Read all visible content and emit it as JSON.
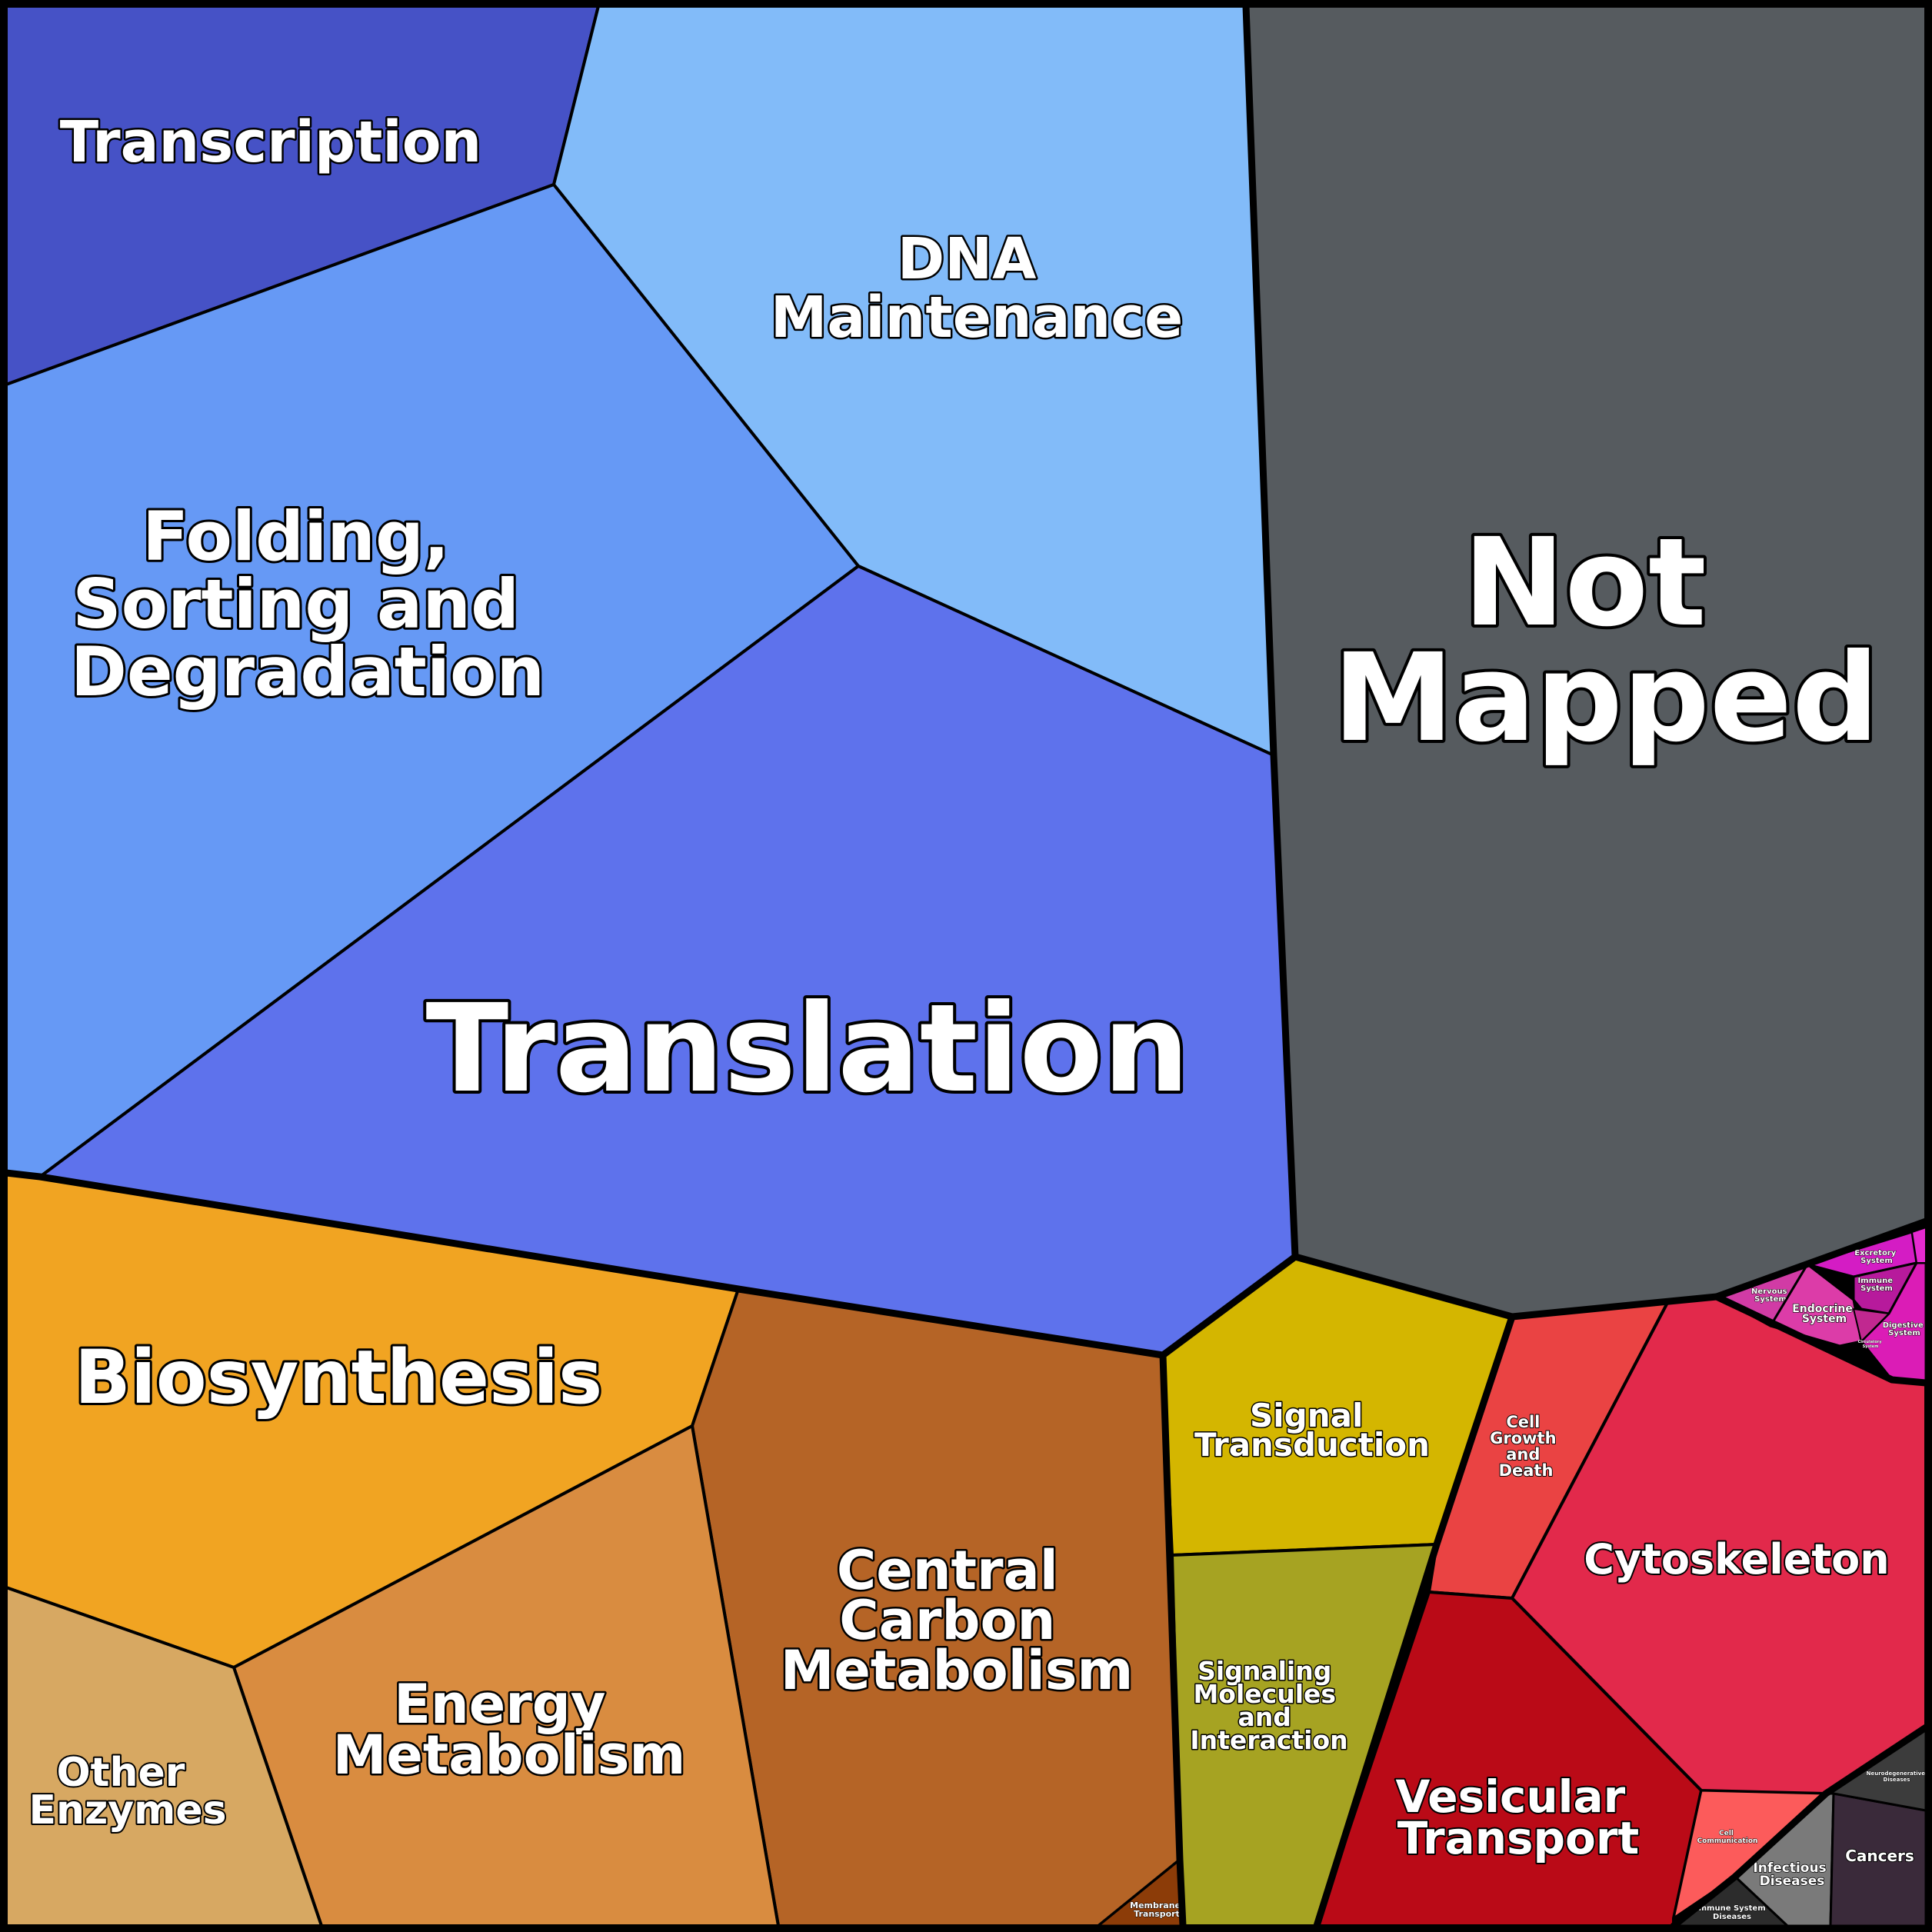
{
  "colors": {
    "background": "#000000",
    "label_text": "#ffffff",
    "transcription": "#4652c6",
    "dna_maintenance": "#82bbf9",
    "folding": "#6699f5",
    "translation": "#5e72ec",
    "not_mapped": "#565b5f",
    "biosynthesis": "#f1a422",
    "central_carbon": "#b56426",
    "energy": "#d98c40",
    "other_enzymes": "#d7a862",
    "membrane_transport": "#8c3c08",
    "signal_transduction": "#d4b600",
    "signaling_molecules": "#a6a322",
    "cell_growth": "#ea4343",
    "cytoskeleton": "#e2294b",
    "vesicular": "#ba0a17",
    "cell_communication": "#fc5b5b",
    "infectious": "#7a7a7a",
    "cancers": "#3a2a3a",
    "immune_diseases": "#2c2c2c",
    "neurodegenerative": "#3c3c3c",
    "nervous": "#d13ba5",
    "endocrine": "#dc3ca8",
    "excretory": "#d41cc4",
    "immune_system": "#b71a9c",
    "digestive": "#db1cb6",
    "circulatory": "#c12890",
    "sensory": "#e52ad0"
  },
  "regions": {
    "transcription": "Transcription",
    "dna_maintenance": [
      "DNA",
      "Maintenance"
    ],
    "folding": [
      "Folding,",
      "Sorting and",
      "Degradation"
    ],
    "translation": "Translation",
    "not_mapped": [
      "Not",
      "Mapped"
    ],
    "biosynthesis": "Biosynthesis",
    "central_carbon": [
      "Central",
      "Carbon",
      "Metabolism"
    ],
    "energy": [
      "Energy",
      "Metabolism"
    ],
    "other_enzymes": [
      "Other",
      "Enzymes"
    ],
    "membrane_transport": [
      "Membrane",
      "Transport"
    ],
    "signal_transduction": [
      "Signal",
      "Transduction"
    ],
    "signaling_molecules": [
      "Signaling",
      "Molecules",
      "and",
      "Interaction"
    ],
    "cell_growth": [
      "Cell",
      "Growth",
      "and",
      "Death"
    ],
    "cytoskeleton": "Cytoskeleton",
    "vesicular": [
      "Vesicular",
      "Transport"
    ],
    "cell_communication": [
      "Cell",
      "Communication"
    ],
    "infectious": [
      "Infectious",
      "Diseases"
    ],
    "cancers": "Cancers",
    "immune_diseases": [
      "Immune System",
      "Diseases"
    ],
    "neurodegenerative": [
      "Neurodegenerative",
      "Diseases"
    ],
    "nervous": [
      "Nervous",
      "System"
    ],
    "endocrine": [
      "Endocrine",
      "System"
    ],
    "excretory": [
      "Excretory",
      "System"
    ],
    "immune_system": [
      "Immune",
      "System"
    ],
    "digestive": [
      "Digestive",
      "System"
    ],
    "circulatory": [
      "Circulatory",
      "System"
    ]
  }
}
